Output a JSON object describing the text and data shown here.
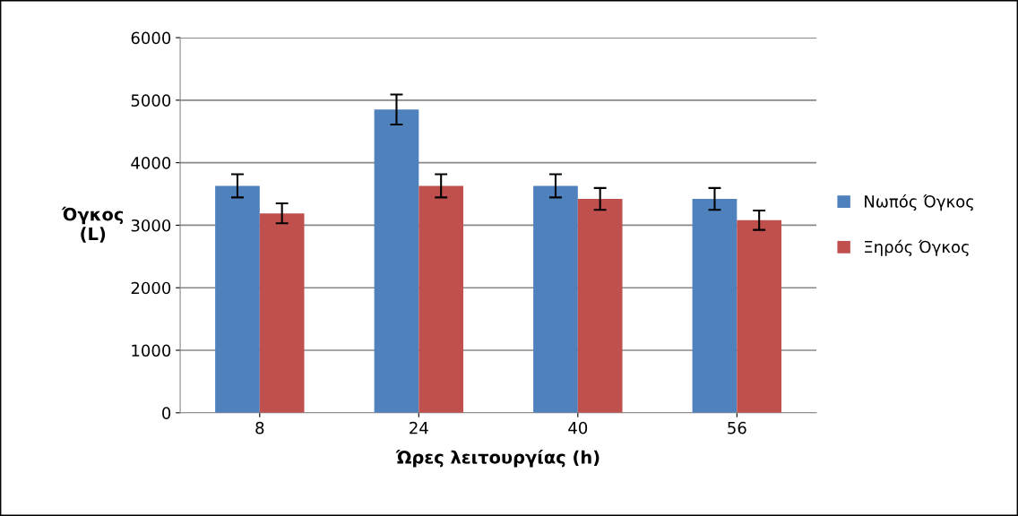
{
  "chart_data": {
    "type": "bar",
    "xlabel": "Ώρες λειτουργίας (h)",
    "ylabel": "Όγκος\n(L)",
    "categories": [
      "8",
      "24",
      "40",
      "56"
    ],
    "series": [
      {
        "name": "Νωπός Όγκος",
        "color": "#4f81bd",
        "values": [
          3630,
          4850,
          3630,
          3420
        ],
        "errors": [
          185,
          240,
          185,
          175
        ]
      },
      {
        "name": "Ξηρός Όγκος",
        "color": "#c0504d",
        "values": [
          3190,
          3630,
          3420,
          3080
        ],
        "errors": [
          160,
          185,
          175,
          155
        ]
      }
    ],
    "ylim": [
      0,
      6000
    ],
    "yticks": [
      0,
      1000,
      2000,
      3000,
      4000,
      5000,
      6000
    ],
    "grid": "y",
    "legend": "right"
  }
}
